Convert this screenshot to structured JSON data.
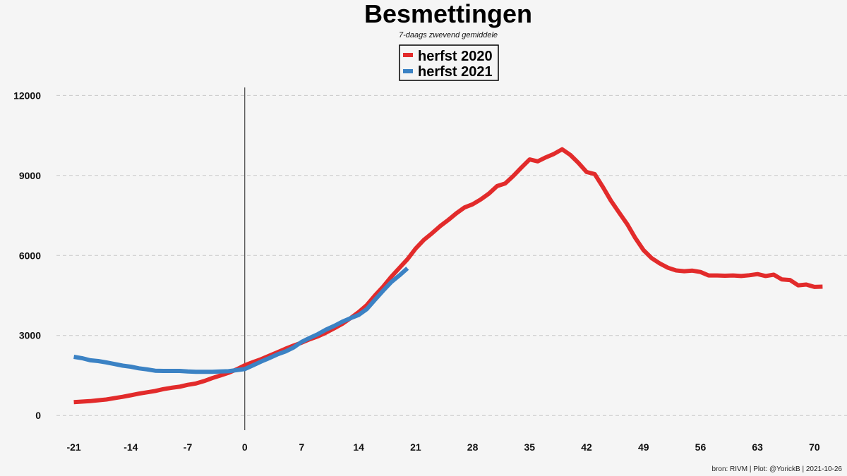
{
  "chart_data": {
    "type": "line",
    "title": "Besmettingen",
    "subtitle": "7-daags zwevend gemiddele",
    "caption": "bron: RIVM  | Plot: @YorickB |  2021-10-26",
    "xlabel": "",
    "ylabel": "",
    "xlim": [
      -24,
      74
    ],
    "ylim": [
      -550,
      12300
    ],
    "x_ticks": [
      -21,
      -14,
      -7,
      0,
      7,
      14,
      21,
      28,
      35,
      42,
      49,
      56,
      63,
      70
    ],
    "y_ticks": [
      0,
      3000,
      6000,
      9000,
      12000
    ],
    "grid": "horizontal dashed",
    "reference_line_x": 0,
    "legend_position": "top-center",
    "series": [
      {
        "name": "herfst 2020",
        "color": "#e22b2b",
        "x": [
          -21,
          -20,
          -19,
          -18,
          -17,
          -16,
          -15,
          -14,
          -13,
          -12,
          -11,
          -10,
          -9,
          -8,
          -7,
          -6,
          -5,
          -4,
          -3,
          -2,
          -1,
          0,
          1,
          2,
          3,
          4,
          5,
          6,
          7,
          8,
          9,
          10,
          11,
          12,
          13,
          14,
          15,
          16,
          17,
          18,
          19,
          20,
          21,
          22,
          23,
          24,
          25,
          26,
          27,
          28,
          29,
          30,
          31,
          32,
          33,
          34,
          35,
          36,
          37,
          38,
          39,
          40,
          41,
          42,
          43,
          44,
          45,
          46,
          47,
          48,
          49,
          50,
          51,
          52,
          53,
          54,
          55,
          56,
          57,
          58,
          59,
          60,
          61,
          62,
          63,
          64,
          65,
          66,
          67,
          68,
          69,
          70,
          71
        ],
        "values": [
          500,
          520,
          540,
          570,
          600,
          650,
          700,
          760,
          820,
          870,
          920,
          990,
          1040,
          1080,
          1150,
          1200,
          1290,
          1400,
          1500,
          1600,
          1730,
          1880,
          2000,
          2110,
          2240,
          2370,
          2500,
          2620,
          2730,
          2860,
          2970,
          3110,
          3270,
          3440,
          3650,
          3880,
          4140,
          4500,
          4830,
          5200,
          5530,
          5860,
          6260,
          6580,
          6830,
          7100,
          7330,
          7580,
          7800,
          7920,
          8100,
          8320,
          8600,
          8700,
          8980,
          9300,
          9600,
          9530,
          9680,
          9810,
          9980,
          9770,
          9470,
          9130,
          9050,
          8570,
          8050,
          7610,
          7170,
          6650,
          6200,
          5900,
          5700,
          5540,
          5440,
          5410,
          5430,
          5380,
          5250,
          5250,
          5240,
          5250,
          5230,
          5260,
          5300,
          5230,
          5280,
          5100,
          5080,
          4880,
          4910,
          4820,
          4830
        ]
      },
      {
        "name": "herfst 2021",
        "color": "#3b82c4",
        "x": [
          -21,
          -20,
          -19,
          -18,
          -17,
          -16,
          -15,
          -14,
          -13,
          -12,
          -11,
          -10,
          -9,
          -8,
          -7,
          -6,
          -5,
          -4,
          -3,
          -2,
          -1,
          0,
          1,
          2,
          3,
          4,
          5,
          6,
          7,
          8,
          9,
          10,
          11,
          12,
          13,
          14,
          15,
          16,
          17,
          18,
          19,
          20
        ],
        "values": [
          2200,
          2150,
          2070,
          2040,
          1990,
          1930,
          1870,
          1830,
          1770,
          1730,
          1680,
          1670,
          1670,
          1670,
          1650,
          1640,
          1640,
          1640,
          1650,
          1660,
          1700,
          1740,
          1880,
          2020,
          2150,
          2290,
          2400,
          2550,
          2760,
          2910,
          3050,
          3220,
          3360,
          3520,
          3650,
          3770,
          3990,
          4340,
          4680,
          5000,
          5250,
          5520
        ]
      }
    ]
  }
}
